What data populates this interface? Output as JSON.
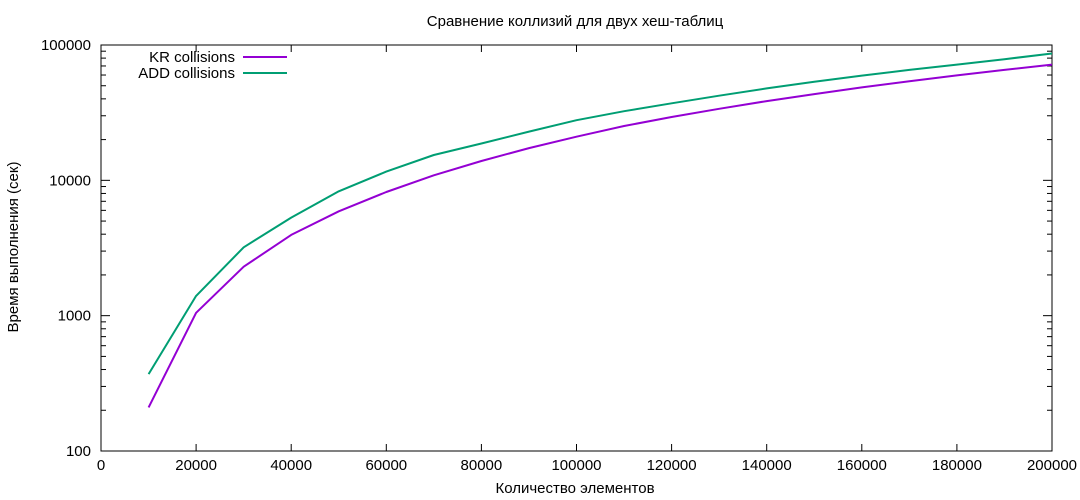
{
  "chart_data": {
    "type": "line",
    "title": "Сравнение коллизий для двух хеш-таблиц",
    "xlabel": "Количество элементов",
    "ylabel": "Время выполнения (сек)",
    "xlim": [
      0,
      200000
    ],
    "ylim": [
      100,
      100000
    ],
    "yscale": "log",
    "grid": false,
    "legend_position": "top-left",
    "x_ticks": [
      "0",
      "20000",
      "40000",
      "60000",
      "80000",
      "100000",
      "120000",
      "140000",
      "160000",
      "180000",
      "200000"
    ],
    "y_ticks": [
      "100",
      "1000",
      "10000",
      "100000"
    ],
    "x": [
      10000,
      20000,
      30000,
      40000,
      50000,
      60000,
      70000,
      80000,
      90000,
      100000,
      110000,
      120000,
      130000,
      140000,
      150000,
      160000,
      170000,
      180000,
      190000,
      200000
    ],
    "series": [
      {
        "name": "KR collisions",
        "color": "#9400d3",
        "values": [
          210,
          1050,
          2300,
          3950,
          5900,
          8200,
          10900,
          13900,
          17300,
          21000,
          25200,
          29400,
          33800,
          38500,
          43400,
          48600,
          54000,
          59600,
          65500,
          71600
        ]
      },
      {
        "name": "ADD collisions",
        "color": "#009e73",
        "values": [
          370,
          1400,
          3200,
          5300,
          8300,
          11600,
          15400,
          18700,
          22900,
          27800,
          32400,
          37100,
          42200,
          47800,
          53500,
          59400,
          65500,
          71600,
          78500,
          86500
        ]
      }
    ]
  }
}
